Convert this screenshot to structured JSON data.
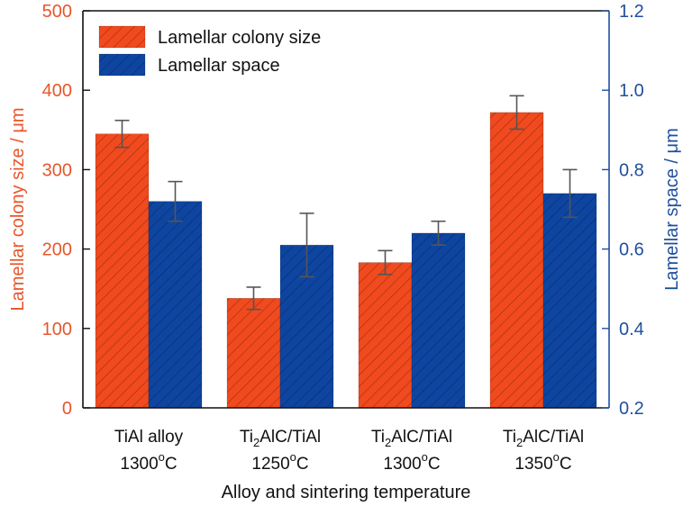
{
  "chart_data": {
    "type": "bar",
    "title": "",
    "xlabel": "Alloy and sintering temperature",
    "ylabel_left": "Lamellar colony size / μm",
    "ylabel_right": "Lamellar space / μm",
    "categories": [
      {
        "line1_pre": "TiAl alloy",
        "line1_sub": "",
        "line1_post": "",
        "line2_num": "1300",
        "line2_sup": "o",
        "line2_unit": "C"
      },
      {
        "line1_pre": "Ti",
        "line1_sub": "2",
        "line1_post": "AlC/TiAl",
        "line2_num": "1250",
        "line2_sup": "o",
        "line2_unit": "C"
      },
      {
        "line1_pre": "Ti",
        "line1_sub": "2",
        "line1_post": "AlC/TiAl",
        "line2_num": "1300",
        "line2_sup": "o",
        "line2_unit": "C"
      },
      {
        "line1_pre": "Ti",
        "line1_sub": "2",
        "line1_post": "AlC/TiAl",
        "line2_num": "1350",
        "line2_sup": "o",
        "line2_unit": "C"
      }
    ],
    "ylim_left": [
      0,
      500
    ],
    "ylim_right": [
      0.2,
      1.2
    ],
    "yticks_left": [
      "0",
      "100",
      "200",
      "300",
      "400",
      "500"
    ],
    "yticks_right": [
      "0.2",
      "0.4",
      "0.6",
      "0.8",
      "1.0",
      "1.2"
    ],
    "series": [
      {
        "name": "Lamellar colony size",
        "axis": "left",
        "color": "#f04a1e",
        "values": [
          345,
          138,
          183,
          372
        ],
        "errors": [
          17,
          14,
          15,
          21
        ]
      },
      {
        "name": "Lamellar space",
        "axis": "right",
        "color": "#0e45a0",
        "values": [
          0.72,
          0.61,
          0.64,
          0.74
        ],
        "errors": [
          0.05,
          0.08,
          0.03,
          0.06
        ]
      }
    ],
    "legend_position": "top-left",
    "grid": false,
    "left_axis_color": "#e8552a",
    "right_axis_color": "#1f4f9c"
  }
}
